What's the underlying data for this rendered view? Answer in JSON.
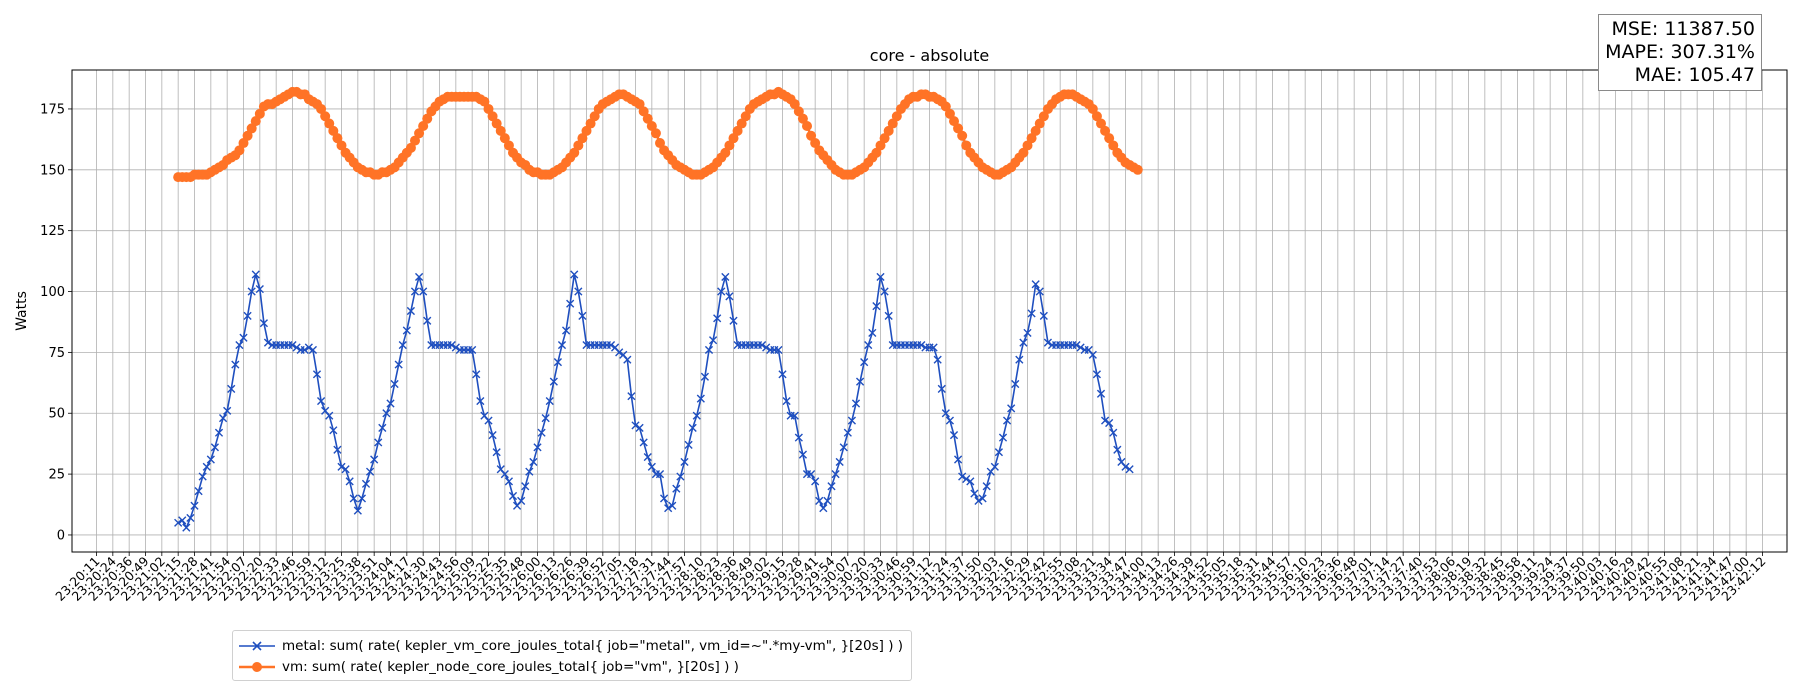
{
  "chart_data": {
    "type": "line",
    "title": "core - absolute",
    "xlabel": "",
    "ylabel": "Watts",
    "ylim": [
      -7,
      191
    ],
    "yticks": [
      0,
      25,
      50,
      75,
      100,
      125,
      150,
      175
    ],
    "grid": true,
    "legend_position": "bottom-left",
    "x_ticks": [
      "23:20:11",
      "23:20:24",
      "23:20:36",
      "23:20:49",
      "23:21:02",
      "23:21:15",
      "23:21:28",
      "23:21:41",
      "23:21:54",
      "23:22:07",
      "23:22:20",
      "23:22:33",
      "23:22:46",
      "23:22:59",
      "23:23:12",
      "23:23:25",
      "23:23:38",
      "23:23:51",
      "23:24:04",
      "23:24:17",
      "23:24:30",
      "23:24:43",
      "23:24:56",
      "23:25:09",
      "23:25:22",
      "23:25:35",
      "23:25:48",
      "23:26:00",
      "23:26:13",
      "23:26:26",
      "23:26:39",
      "23:26:52",
      "23:27:05",
      "23:27:18",
      "23:27:31",
      "23:27:44",
      "23:27:57",
      "23:28:10",
      "23:28:23",
      "23:28:36",
      "23:28:49",
      "23:29:02",
      "23:29:15",
      "23:29:28",
      "23:29:41",
      "23:29:54",
      "23:30:07",
      "23:30:20",
      "23:30:33",
      "23:30:46",
      "23:30:59",
      "23:31:12",
      "23:31:24",
      "23:31:37",
      "23:31:50",
      "23:32:03",
      "23:32:16",
      "23:32:29",
      "23:32:42",
      "23:32:55",
      "23:33:08",
      "23:33:21",
      "23:33:34",
      "23:33:47",
      "23:34:00",
      "23:34:13",
      "23:34:26",
      "23:34:39",
      "23:34:52",
      "23:35:05",
      "23:35:18",
      "23:35:31",
      "23:35:44",
      "23:35:57",
      "23:36:10",
      "23:36:23",
      "23:36:36",
      "23:36:48",
      "23:37:01",
      "23:37:14",
      "23:37:27",
      "23:37:40",
      "23:37:53",
      "23:38:06",
      "23:38:19",
      "23:38:32",
      "23:38:45",
      "23:38:58",
      "23:39:11",
      "23:39:24",
      "23:39:37",
      "23:39:50",
      "23:40:03",
      "23:40:16",
      "23:40:29",
      "23:40:42",
      "23:40:55",
      "23:41:08",
      "23:41:21",
      "23:41:34",
      "23:41:47",
      "23:42:00",
      "23:42:12"
    ],
    "series": [
      {
        "name": "metal: sum( rate( kepler_vm_core_joules_total{ job=\"metal\", vm_id=~\".*my-vm\", }[20s] ) )",
        "marker": "x",
        "color": "#1f4fbf",
        "x_start": 5,
        "x_step": 0.25,
        "values": [
          5,
          6,
          3,
          7,
          12,
          18,
          24,
          28,
          31,
          36,
          42,
          48,
          51,
          60,
          70,
          78,
          81,
          90,
          100,
          107,
          101,
          87,
          79,
          78,
          78,
          78,
          78,
          78,
          78,
          77,
          76,
          76,
          77,
          76,
          66,
          55,
          51,
          49,
          43,
          35,
          28,
          27,
          22,
          15,
          10,
          15,
          21,
          26,
          31,
          38,
          44,
          50,
          54,
          62,
          70,
          78,
          84,
          92,
          100,
          106,
          100,
          88,
          78,
          78,
          78,
          78,
          78,
          78,
          77,
          76,
          76,
          76,
          76,
          66,
          55,
          49,
          47,
          41,
          34,
          27,
          25,
          22,
          16,
          12,
          14,
          20,
          26,
          30,
          36,
          42,
          48,
          55,
          63,
          71,
          78,
          84,
          95,
          107,
          100,
          90,
          78,
          78,
          78,
          78,
          78,
          78,
          78,
          77,
          75,
          74,
          72,
          57,
          45,
          44,
          38,
          32,
          28,
          25,
          25,
          15,
          11,
          12,
          19,
          24,
          30,
          37,
          44,
          49,
          56,
          65,
          76,
          80,
          89,
          100,
          106,
          98,
          88,
          78,
          78,
          78,
          78,
          78,
          78,
          78,
          77,
          76,
          76,
          76,
          66,
          55,
          49,
          49,
          40,
          33,
          25,
          25,
          22,
          14,
          11,
          14,
          20,
          25,
          30,
          36,
          42,
          47,
          54,
          63,
          71,
          78,
          83,
          94,
          106,
          100,
          90,
          78,
          78,
          78,
          78,
          78,
          78,
          78,
          78,
          77,
          77,
          77,
          72,
          60,
          50,
          47,
          41,
          31,
          24,
          23,
          22,
          17,
          14,
          15,
          20,
          26,
          28,
          34,
          40,
          47,
          52,
          62,
          72,
          79,
          83,
          91,
          103,
          100,
          90,
          79,
          78,
          78,
          78,
          78,
          78,
          78,
          78,
          77,
          76,
          76,
          74,
          66,
          58,
          47,
          46,
          42,
          35,
          30,
          28,
          27
        ]
      },
      {
        "name": "vm: sum( rate( kepler_node_core_joules_total{ job=\"vm\", }[20s] ) )",
        "marker": "o",
        "color": "#ff7326",
        "x_start": 5,
        "x_step": 0.25,
        "values": [
          147,
          147,
          147,
          147,
          148,
          148,
          148,
          148,
          149,
          150,
          151,
          152,
          154,
          155,
          156,
          158,
          161,
          164,
          167,
          170,
          173,
          176,
          177,
          177,
          178,
          179,
          180,
          181,
          182,
          182,
          181,
          181,
          179,
          178,
          177,
          175,
          172,
          169,
          166,
          163,
          160,
          157,
          155,
          153,
          151,
          150,
          149,
          149,
          148,
          148,
          149,
          149,
          150,
          151,
          153,
          155,
          157,
          159,
          162,
          165,
          168,
          171,
          174,
          176,
          178,
          179,
          180,
          180,
          180,
          180,
          180,
          180,
          180,
          180,
          179,
          178,
          175,
          172,
          169,
          166,
          163,
          160,
          157,
          155,
          153,
          152,
          150,
          149,
          149,
          148,
          148,
          148,
          149,
          150,
          151,
          153,
          155,
          157,
          160,
          163,
          166,
          169,
          172,
          175,
          177,
          178,
          179,
          180,
          181,
          181,
          180,
          179,
          178,
          177,
          174,
          171,
          168,
          165,
          161,
          158,
          156,
          154,
          152,
          151,
          150,
          149,
          148,
          148,
          148,
          149,
          150,
          151,
          153,
          155,
          157,
          160,
          163,
          166,
          169,
          172,
          175,
          177,
          178,
          179,
          180,
          181,
          181,
          182,
          181,
          180,
          179,
          177,
          174,
          171,
          168,
          164,
          161,
          158,
          156,
          154,
          152,
          150,
          149,
          148,
          148,
          148,
          149,
          150,
          151,
          153,
          155,
          157,
          160,
          163,
          166,
          169,
          172,
          175,
          177,
          179,
          180,
          180,
          181,
          181,
          180,
          180,
          179,
          178,
          176,
          173,
          170,
          167,
          164,
          160,
          157,
          155,
          153,
          151,
          150,
          149,
          148,
          148,
          149,
          150,
          151,
          153,
          155,
          157,
          160,
          163,
          166,
          169,
          172,
          175,
          177,
          179,
          180,
          181,
          181,
          181,
          180,
          179,
          178,
          177,
          175,
          172,
          169,
          166,
          163,
          160,
          157,
          155,
          153,
          152,
          151,
          150
        ]
      }
    ]
  },
  "metrics_box": {
    "mse": "MSE: 11387.50",
    "mape": "MAPE: 307.31%",
    "mae": "MAE: 105.47"
  },
  "legend": {
    "metal_label": "metal: sum( rate( kepler_vm_core_joules_total{ job=\"metal\", vm_id=~\".*my-vm\", }[20s] ) )",
    "vm_label": "vm: sum( rate( kepler_node_core_joules_total{ job=\"vm\", }[20s] ) )"
  }
}
